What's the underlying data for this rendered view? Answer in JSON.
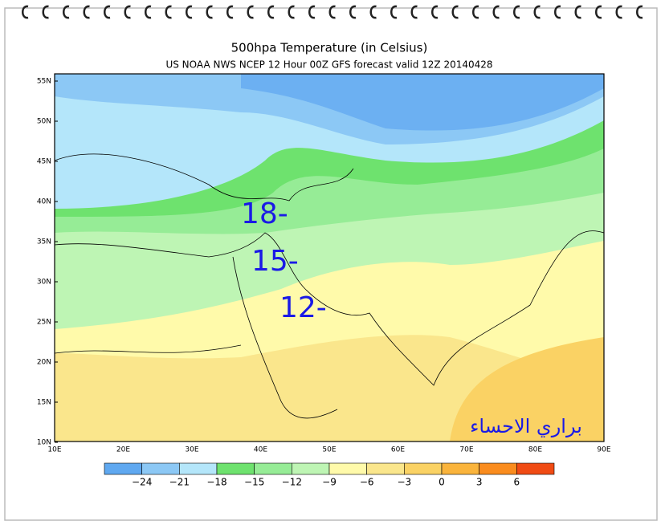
{
  "header": {
    "title": "500hpa  Temperature (in Celsius)",
    "subtitle": "US NOAA NWS NCEP 12 Hour 00Z GFS forecast valid 12Z 20140428"
  },
  "map": {
    "lat_labels": [
      "55N",
      "50N",
      "45N",
      "40N",
      "35N",
      "30N",
      "25N",
      "20N",
      "15N",
      "10N"
    ],
    "lon_labels": [
      "10E",
      "20E",
      "30E",
      "40E",
      "50E",
      "60E",
      "70E",
      "80E",
      "90E"
    ],
    "annotations": [
      "18-",
      "15-",
      "12-"
    ],
    "watermark": "براري الاحساء"
  },
  "colorbar": {
    "colors": [
      "#5fa8f0",
      "#8cc8f5",
      "#b4e6fa",
      "#6ee26e",
      "#96ec96",
      "#bef5b4",
      "#fffaaa",
      "#fae68c",
      "#fad264",
      "#fab43c",
      "#fa8c1e",
      "#f04b14"
    ],
    "labels": [
      "−24",
      "−21",
      "−18",
      "−15",
      "−12",
      "−9",
      "−6",
      "−3",
      "0",
      "3",
      "6"
    ]
  }
}
